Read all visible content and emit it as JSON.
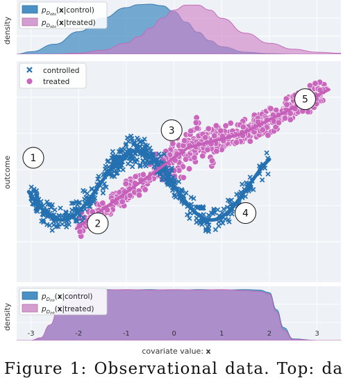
{
  "chart_data": [
    {
      "type": "area",
      "panel": "top",
      "ylabel": "density",
      "legend": [
        "p_{D_{obs}}(x|control)",
        "p_{D_{obs}}(x|treated)"
      ],
      "legend_placement": "top-left",
      "x": [
        -3.3,
        -3.0,
        -2.5,
        -2.0,
        -1.5,
        -1.0,
        -0.75,
        -0.5,
        -0.25,
        0.0,
        0.25,
        0.5,
        0.75,
        1.0,
        1.5,
        2.0,
        2.5,
        3.0,
        3.5
      ],
      "series": [
        {
          "name": "control",
          "color": "#4a90c4",
          "values": [
            0.0,
            0.05,
            0.2,
            0.45,
            0.72,
            0.93,
            0.99,
            1.0,
            0.97,
            0.85,
            0.64,
            0.44,
            0.27,
            0.15,
            0.04,
            0.01,
            0.0,
            0.0,
            0.0
          ]
        },
        {
          "name": "treated",
          "color": "#d07cc4",
          "values": [
            0.0,
            0.0,
            0.0,
            0.02,
            0.08,
            0.22,
            0.35,
            0.52,
            0.72,
            0.88,
            0.98,
            0.98,
            0.88,
            0.72,
            0.42,
            0.22,
            0.1,
            0.04,
            0.02
          ]
        }
      ]
    },
    {
      "type": "scatter",
      "panel": "middle",
      "ylabel": "outcome",
      "xlim": [
        -3.3,
        3.5
      ],
      "legend": [
        "controlled",
        "treated"
      ],
      "legend_placement": "top-left",
      "control_curve": {
        "x_start": -3.05,
        "x_end": 2.0,
        "description_values": "y = sin(2x)-style wave"
      },
      "treated_curve": {
        "x_start": -2.05,
        "x_end": 3.25
      },
      "annotations": [
        {
          "label": "1",
          "x": -2.95,
          "y": 0.8
        },
        {
          "label": "2",
          "x": -1.6,
          "y": -1.1
        },
        {
          "label": "3",
          "x": -0.05,
          "y": 1.6
        },
        {
          "label": "4",
          "x": 1.5,
          "y": -0.8
        },
        {
          "label": "5",
          "x": 2.75,
          "y": 2.5
        }
      ],
      "series": [
        {
          "name": "controlled",
          "color": "#2b7bba",
          "marker": "x"
        },
        {
          "name": "treated",
          "color": "#c966bd",
          "marker": "o"
        }
      ]
    },
    {
      "type": "area",
      "panel": "bottom",
      "ylabel": "density",
      "xlabel": "covariate value: x",
      "legend": [
        "p_{D_{int}}(x|control)",
        "p_{D_{int}}(x|treated)"
      ],
      "legend_placement": "top-left",
      "xticks": [
        "-3",
        "-2",
        "-1",
        "0",
        "1",
        "2",
        "3"
      ],
      "x": [
        -3.3,
        -3.0,
        -2.8,
        -2.6,
        -2.4,
        -2.2,
        -2.0,
        -1.5,
        -1.0,
        -0.5,
        0.0,
        0.5,
        1.0,
        1.5,
        1.8,
        2.0,
        2.15,
        2.3,
        2.5,
        3.0,
        3.5
      ],
      "series": [
        {
          "name": "control",
          "color": "#4a90c4",
          "values": [
            0.0,
            0.0,
            0.05,
            0.3,
            0.7,
            0.95,
            0.98,
            0.99,
            0.98,
            0.99,
            0.97,
            0.99,
            0.98,
            0.99,
            0.98,
            0.93,
            0.6,
            0.25,
            0.03,
            0.0,
            0.0
          ]
        },
        {
          "name": "treated",
          "color": "#d07cc4",
          "values": [
            0.0,
            0.0,
            0.05,
            0.3,
            0.7,
            0.95,
            0.99,
            0.98,
            0.99,
            0.98,
            0.99,
            0.98,
            0.99,
            0.97,
            0.95,
            0.9,
            0.55,
            0.2,
            0.02,
            0.0,
            0.0
          ]
        }
      ]
    }
  ],
  "caption": {
    "words": [
      "Figure",
      "1:",
      "Observational",
      "data.",
      "Top:",
      "data"
    ]
  }
}
